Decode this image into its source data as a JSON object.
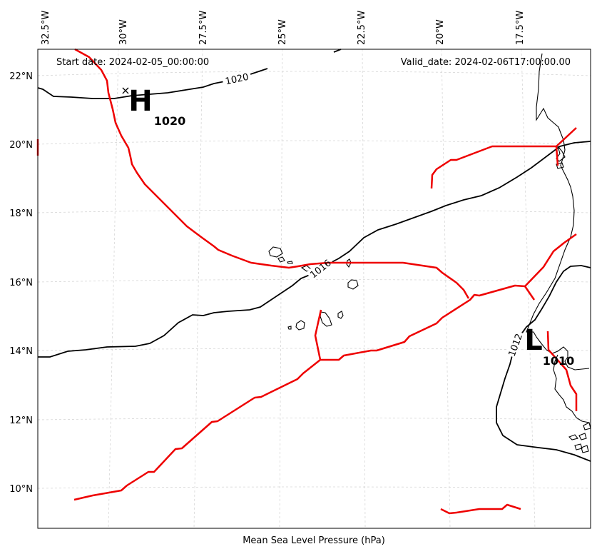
{
  "header": {
    "start_date": "Start date: 2024-02-05_00:00:00",
    "valid_date": "Valid_date: 2024-02-06T17:00:00.00"
  },
  "footer": {
    "xlabel": "Mean Sea Level Pressure (hPa)"
  },
  "axes": {
    "lon_ticks": [
      "32.5°W",
      "30°W",
      "27.5°W",
      "25°W",
      "22.5°W",
      "20°W",
      "17.5°W"
    ],
    "lat_ticks": [
      "22°N",
      "20°N",
      "18°N",
      "16°N",
      "14°N",
      "12°N",
      "10°N"
    ]
  },
  "pressure_centers": {
    "high": {
      "letter": "H",
      "value": "1020",
      "marker": "×"
    },
    "low": {
      "letter": "L",
      "value": "1010"
    }
  },
  "isobars": {
    "label_1020": "1020",
    "label_1016": "1016",
    "label_1012": "1012"
  },
  "colors": {
    "isobar": "#000000",
    "front_trough": "#ee0000",
    "gridline": "#cccccc",
    "coastline": "#000000"
  }
}
